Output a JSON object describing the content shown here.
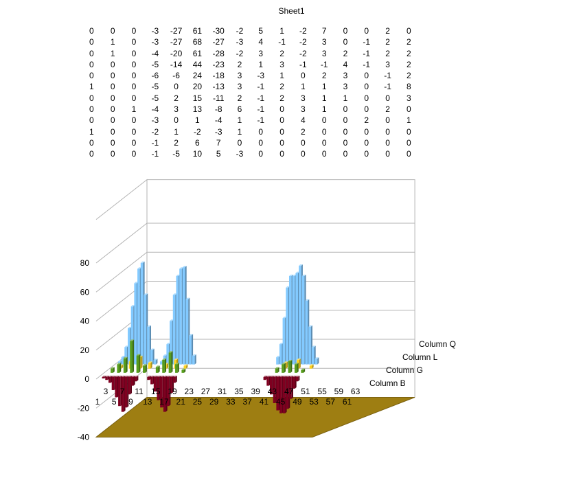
{
  "sheet": {
    "title": "Sheet1",
    "table": [
      [
        "0",
        "0",
        "0",
        "-3",
        "-27",
        "61",
        "-30",
        "-2",
        "5",
        "1",
        "-2",
        "7",
        "0",
        "0",
        "2",
        "0"
      ],
      [
        "0",
        "1",
        "0",
        "-3",
        "-27",
        "68",
        "-27",
        "-3",
        "4",
        "-1",
        "-2",
        "3",
        "0",
        "-1",
        "2",
        "2"
      ],
      [
        "0",
        "1",
        "0",
        "-4",
        "-20",
        "61",
        "-28",
        "-2",
        "3",
        "2",
        "-2",
        "3",
        "2",
        "-1",
        "2",
        "2"
      ],
      [
        "0",
        "0",
        "0",
        "-5",
        "-14",
        "44",
        "-23",
        "2",
        "1",
        "3",
        "-1",
        "-1",
        "4",
        "-1",
        "3",
        "2"
      ],
      [
        "0",
        "0",
        "0",
        "-6",
        "-6",
        "24",
        "-18",
        "3",
        "-3",
        "1",
        "0",
        "2",
        "3",
        "0",
        "-1",
        "2"
      ],
      [
        "1",
        "0",
        "0",
        "-5",
        "0",
        "20",
        "-13",
        "3",
        "-1",
        "2",
        "1",
        "1",
        "3",
        "0",
        "-1",
        "8"
      ],
      [
        "0",
        "0",
        "0",
        "-5",
        "2",
        "15",
        "-11",
        "2",
        "-1",
        "2",
        "3",
        "1",
        "1",
        "0",
        "0",
        "3"
      ],
      [
        "0",
        "0",
        "1",
        "-4",
        "3",
        "13",
        "-8",
        "6",
        "-1",
        "0",
        "3",
        "1",
        "0",
        "0",
        "2",
        "0"
      ],
      [
        "0",
        "0",
        "0",
        "-3",
        "0",
        "1",
        "-4",
        "1",
        "-1",
        "0",
        "4",
        "0",
        "0",
        "2",
        "0",
        "1"
      ],
      [
        "1",
        "0",
        "0",
        "-2",
        "1",
        "-2",
        "-3",
        "1",
        "0",
        "0",
        "2",
        "0",
        "0",
        "0",
        "0",
        "0"
      ],
      [
        "0",
        "0",
        "0",
        "-1",
        "2",
        "6",
        "7",
        "0",
        "0",
        "0",
        "0",
        "0",
        "0",
        "0",
        "0",
        "0"
      ],
      [
        "0",
        "0",
        "0",
        "-1",
        "-5",
        "10",
        "5",
        "-3",
        "0",
        "0",
        "0",
        "0",
        "0",
        "0",
        "0",
        "0"
      ]
    ]
  },
  "chart_data": {
    "type": "bar",
    "variant": "3d-deep-column",
    "y_ticks": [
      "80",
      "60",
      "40",
      "20",
      "0",
      "-20",
      "-40"
    ],
    "ylim": [
      -40,
      80
    ],
    "x_ticks_row1": [
      "3",
      "7",
      "11",
      "15",
      "19",
      "23",
      "27",
      "31",
      "35",
      "39",
      "43",
      "47",
      "51",
      "55",
      "59",
      "63"
    ],
    "x_ticks_row2": [
      "1",
      "5",
      "9",
      "13",
      "17",
      "21",
      "25",
      "29",
      "33",
      "37",
      "41",
      "45",
      "49",
      "53",
      "57",
      "61"
    ],
    "depth_labels": [
      "Column B",
      "Column G",
      "Column L",
      "Column Q"
    ],
    "series": [
      {
        "name": "Column B",
        "color": "#7f0020",
        "values": [
          {
            "x": 1,
            "v": -1
          },
          {
            "x": 2,
            "v": -2
          },
          {
            "x": 3,
            "v": -4
          },
          {
            "x": 4,
            "v": -9
          },
          {
            "x": 5,
            "v": -14
          },
          {
            "x": 6,
            "v": -20
          },
          {
            "x": 7,
            "v": -24
          },
          {
            "x": 8,
            "v": -21
          },
          {
            "x": 9,
            "v": -12
          },
          {
            "x": 10,
            "v": -6
          },
          {
            "x": 11,
            "v": -3
          },
          {
            "x": 15,
            "v": -2
          },
          {
            "x": 16,
            "v": -5
          },
          {
            "x": 17,
            "v": -10
          },
          {
            "x": 18,
            "v": -16
          },
          {
            "x": 19,
            "v": -21
          },
          {
            "x": 20,
            "v": -24
          },
          {
            "x": 21,
            "v": -20
          },
          {
            "x": 22,
            "v": -11
          },
          {
            "x": 23,
            "v": -4
          },
          {
            "x": 51,
            "v": -2
          },
          {
            "x": 52,
            "v": -6
          },
          {
            "x": 53,
            "v": -12
          },
          {
            "x": 54,
            "v": -18
          },
          {
            "x": 55,
            "v": -23
          },
          {
            "x": 56,
            "v": -25
          },
          {
            "x": 57,
            "v": -25
          },
          {
            "x": 58,
            "v": -22
          },
          {
            "x": 59,
            "v": -15
          },
          {
            "x": 60,
            "v": -8
          },
          {
            "x": 61,
            "v": -3
          }
        ]
      },
      {
        "name": "Column G",
        "color": "#579d1c",
        "values": [
          {
            "x": 2,
            "v": 3
          },
          {
            "x": 4,
            "v": 6
          },
          {
            "x": 6,
            "v": 10
          },
          {
            "x": 8,
            "v": 22
          },
          {
            "x": 10,
            "v": 12
          },
          {
            "x": 12,
            "v": 5
          },
          {
            "x": 16,
            "v": 4
          },
          {
            "x": 18,
            "v": 9
          },
          {
            "x": 20,
            "v": 14
          },
          {
            "x": 22,
            "v": 6
          },
          {
            "x": 24,
            "v": 2
          },
          {
            "x": 53,
            "v": 3
          },
          {
            "x": 55,
            "v": 6
          },
          {
            "x": 57,
            "v": 8
          },
          {
            "x": 59,
            "v": 6
          },
          {
            "x": 61,
            "v": 2
          }
        ]
      },
      {
        "name": "Column L",
        "color": "#ffd320",
        "values": [
          {
            "x": 3,
            "v": 2
          },
          {
            "x": 6,
            "v": 5
          },
          {
            "x": 9,
            "v": 8
          },
          {
            "x": 12,
            "v": 4
          },
          {
            "x": 17,
            "v": 3
          },
          {
            "x": 20,
            "v": 6
          },
          {
            "x": 23,
            "v": 2
          },
          {
            "x": 54,
            "v": 4
          },
          {
            "x": 58,
            "v": 6
          },
          {
            "x": 62,
            "v": 2
          }
        ]
      },
      {
        "name": "Column Q",
        "color": "#83caff",
        "values": [
          {
            "x": 1,
            "v": 2
          },
          {
            "x": 2,
            "v": 5
          },
          {
            "x": 3,
            "v": 12
          },
          {
            "x": 4,
            "v": 25
          },
          {
            "x": 5,
            "v": 40
          },
          {
            "x": 6,
            "v": 56
          },
          {
            "x": 7,
            "v": 66
          },
          {
            "x": 8,
            "v": 70
          },
          {
            "x": 9,
            "v": 48
          },
          {
            "x": 10,
            "v": 26
          },
          {
            "x": 11,
            "v": 10
          },
          {
            "x": 12,
            "v": 3
          },
          {
            "x": 14,
            "v": 2
          },
          {
            "x": 15,
            "v": 6
          },
          {
            "x": 16,
            "v": 14
          },
          {
            "x": 17,
            "v": 30
          },
          {
            "x": 18,
            "v": 48
          },
          {
            "x": 19,
            "v": 61
          },
          {
            "x": 20,
            "v": 66
          },
          {
            "x": 21,
            "v": 67
          },
          {
            "x": 22,
            "v": 45
          },
          {
            "x": 23,
            "v": 20
          },
          {
            "x": 24,
            "v": 6
          },
          {
            "x": 50,
            "v": 5
          },
          {
            "x": 51,
            "v": 14
          },
          {
            "x": 52,
            "v": 32
          },
          {
            "x": 53,
            "v": 53
          },
          {
            "x": 54,
            "v": 61
          },
          {
            "x": 55,
            "v": 61
          },
          {
            "x": 56,
            "v": 63
          },
          {
            "x": 57,
            "v": 68
          },
          {
            "x": 58,
            "v": 61
          },
          {
            "x": 59,
            "v": 44
          },
          {
            "x": 60,
            "v": 26
          },
          {
            "x": 61,
            "v": 12
          },
          {
            "x": 62,
            "v": 4
          }
        ]
      }
    ],
    "colors": {
      "floor": "#9e7e12",
      "floor_edge": "#7a6010",
      "grid": "#b3b3b3",
      "wall_edge": "#b3b3b3"
    }
  }
}
